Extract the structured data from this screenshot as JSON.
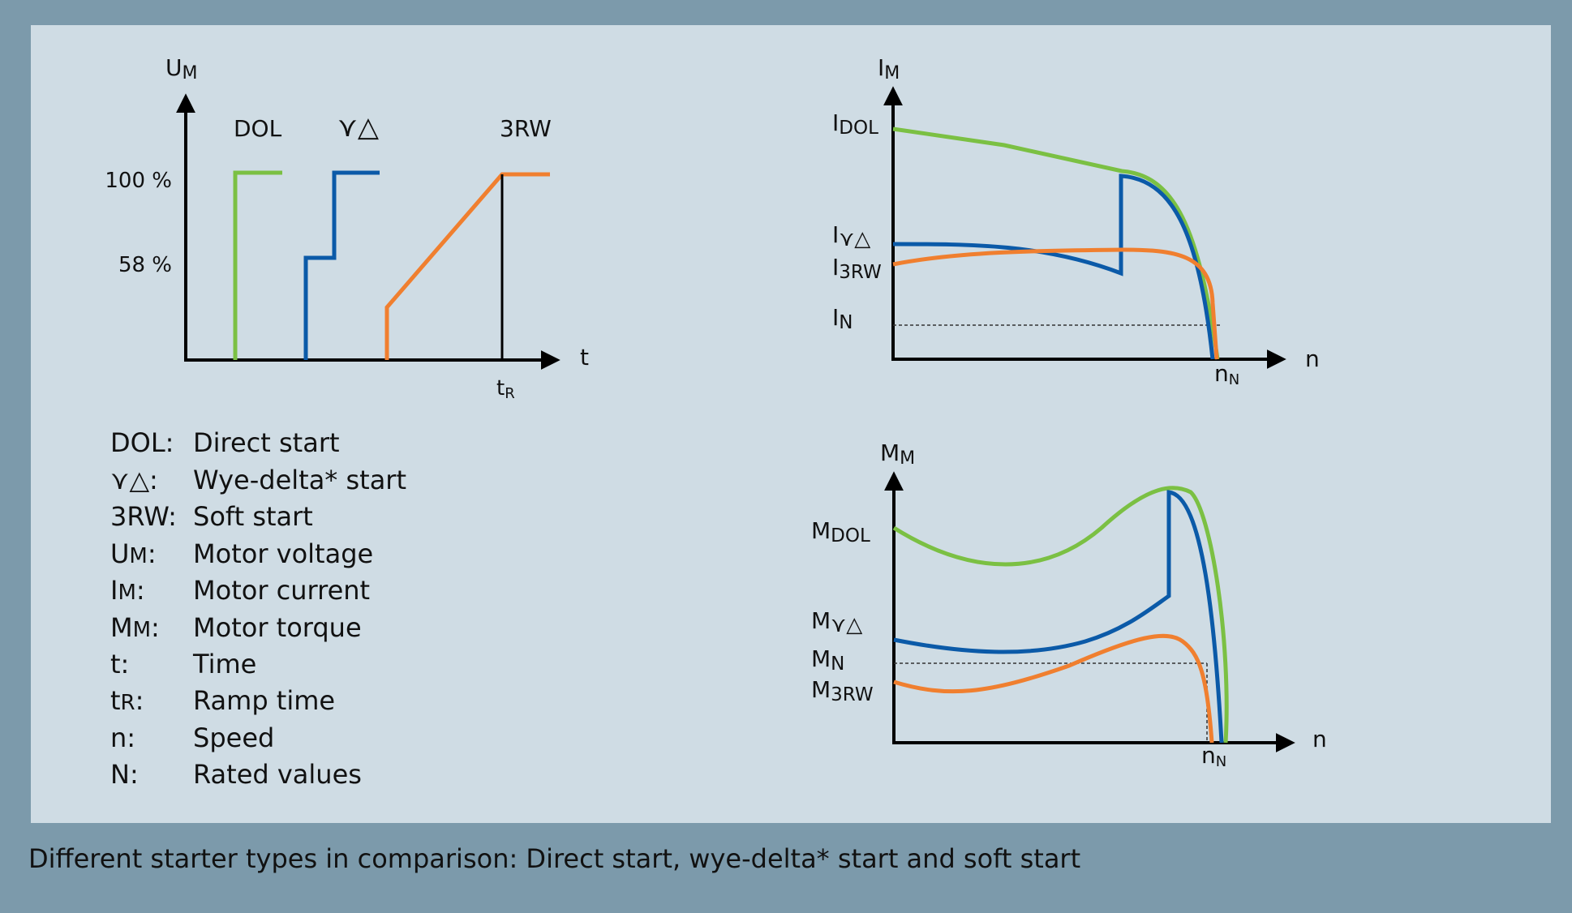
{
  "colors": {
    "dol": "#7bc043",
    "wye_delta": "#0b5aa8",
    "soft_start": "#f07f2f",
    "axis": "#000000",
    "panel": "#cfdce4",
    "background": "#7c9aab"
  },
  "voltage_chart": {
    "y_axis_label": {
      "base": "U",
      "sub": "M"
    },
    "x_axis_label": "t",
    "y_ticks": [
      "100 %",
      "58 %"
    ],
    "ramp_time_label": {
      "base": "t",
      "sub": "R"
    },
    "curve_labels": {
      "dol": "DOL",
      "wye_delta": "⋎△",
      "soft_start": "3RW"
    }
  },
  "current_chart": {
    "y_axis_label": {
      "base": "I",
      "sub": "M"
    },
    "x_axis_label": "n",
    "rated_speed_label": {
      "base": "n",
      "sub": "N"
    },
    "curve_labels": {
      "dol": {
        "base": "I",
        "sub": "DOL"
      },
      "wye_delta": {
        "base": "I",
        "sub": "⋎△"
      },
      "soft_start": {
        "base": "I",
        "sub": "3RW"
      },
      "rated": {
        "base": "I",
        "sub": "N"
      }
    }
  },
  "torque_chart": {
    "y_axis_label": {
      "base": "M",
      "sub": "M"
    },
    "x_axis_label": "n",
    "rated_speed_label": {
      "base": "n",
      "sub": "N"
    },
    "curve_labels": {
      "dol": {
        "base": "M",
        "sub": "DOL"
      },
      "wye_delta": {
        "base": "M",
        "sub": "⋎△"
      },
      "rated": {
        "base": "M",
        "sub": "N"
      },
      "soft_start": {
        "base": "M",
        "sub": "3RW"
      }
    }
  },
  "legend": [
    {
      "key": "DOL:",
      "value": "Direct start"
    },
    {
      "key": "⋎△:",
      "value": "Wye-delta* start"
    },
    {
      "key": "3RW:",
      "value": "Soft start"
    },
    {
      "key_base": "U",
      "key_sub": "M",
      "key_suffix": ":",
      "value": "Motor voltage"
    },
    {
      "key_base": "I",
      "key_sub": "M",
      "key_suffix": ":",
      "value": "Motor current"
    },
    {
      "key_base": "M",
      "key_sub": "M",
      "key_suffix": ":",
      "value": "Motor torque"
    },
    {
      "key": "t:",
      "value": "Time"
    },
    {
      "key_base": "t",
      "key_sub": "R",
      "key_suffix": ":",
      "value": "Ramp time"
    },
    {
      "key": "n:",
      "value": "Speed"
    },
    {
      "key": "N:",
      "value": "Rated values"
    }
  ],
  "caption": "Different starter types in comparison: Direct start, wye-delta* start and soft start"
}
